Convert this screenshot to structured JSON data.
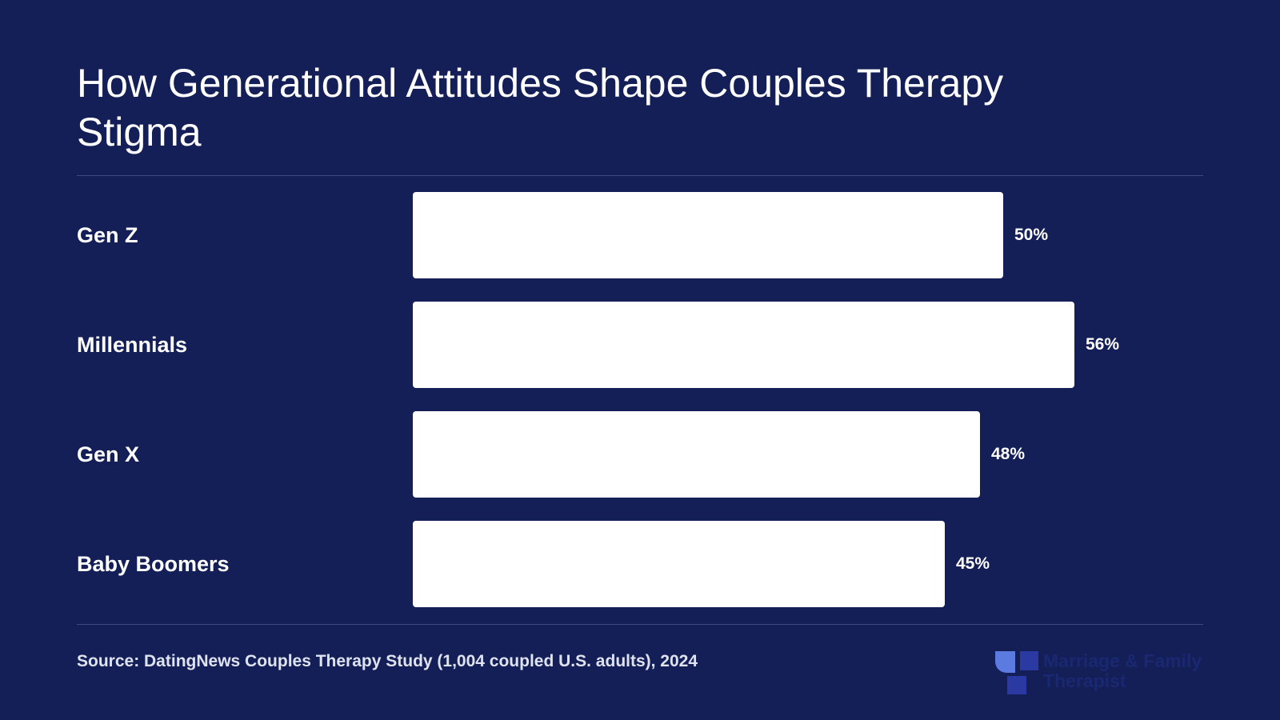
{
  "chart_data": {
    "type": "bar",
    "orientation": "horizontal",
    "title": "How Generational Attitudes Shape Couples Therapy Stigma",
    "categories": [
      "Gen Z",
      "Millennials",
      "Gen X",
      "Baby Boomers"
    ],
    "values": [
      50,
      56,
      48,
      45
    ],
    "value_labels": [
      "50%",
      "56%",
      "48%",
      "45%"
    ],
    "xlim": [
      0,
      56
    ],
    "grid": false,
    "legend": "none",
    "bar_color": "#ffffff",
    "background_color": "#131f56"
  },
  "footer": {
    "source": "Source: DatingNews Couples Therapy Study (1,004 coupled U.S. adults), 2024"
  },
  "logo": {
    "line1": "Marriage & Family",
    "line2": "Therapist",
    "icon": "mft-logo-icon",
    "color": "#1a2872",
    "accent_color": "#5b7be0"
  }
}
